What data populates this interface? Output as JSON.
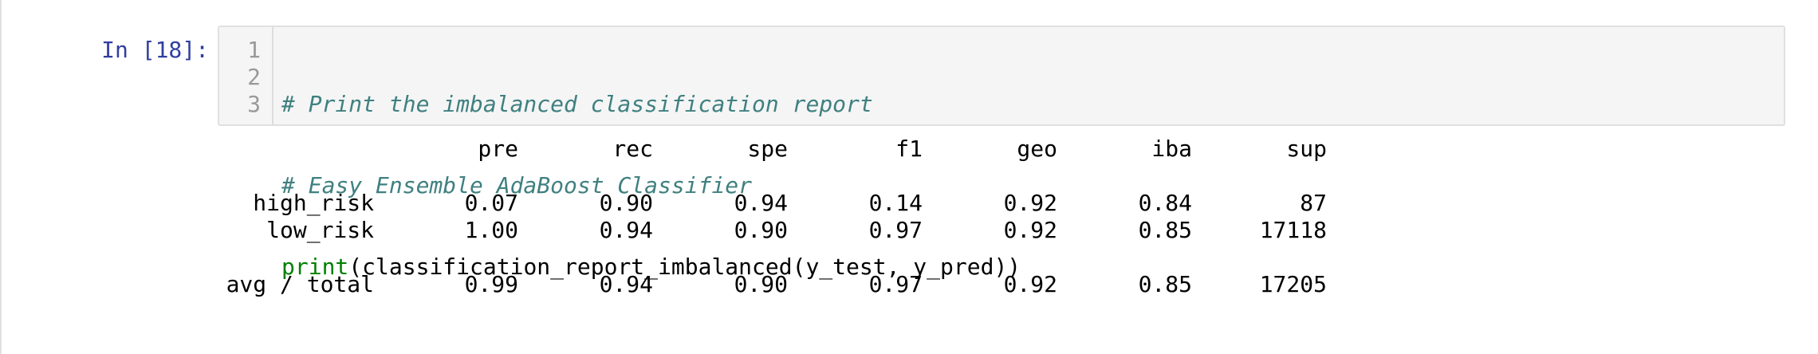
{
  "prompt": "In [18]:",
  "code_lines": [
    {
      "number": "1",
      "text": "# Print the imbalanced classification report",
      "kind": "comment"
    },
    {
      "number": "2",
      "text": "# Easy Ensemble AdaBoost Classifier",
      "kind": "comment"
    },
    {
      "number": "3",
      "fn": "print",
      "rest": "(classification_report_imbalanced(y_test, y_pred))",
      "kind": "code"
    }
  ],
  "report": {
    "headers": [
      "pre",
      "rec",
      "spe",
      "f1",
      "geo",
      "iba",
      "sup"
    ],
    "rows": [
      {
        "label": "high_risk",
        "values": [
          "0.07",
          "0.90",
          "0.94",
          "0.14",
          "0.92",
          "0.84",
          "87"
        ]
      },
      {
        "label": "low_risk",
        "values": [
          "1.00",
          "0.94",
          "0.90",
          "0.97",
          "0.92",
          "0.85",
          "17118"
        ]
      }
    ],
    "total": {
      "label": "avg / total",
      "values": [
        "0.99",
        "0.94",
        "0.90",
        "0.97",
        "0.92",
        "0.85",
        "17205"
      ]
    }
  }
}
